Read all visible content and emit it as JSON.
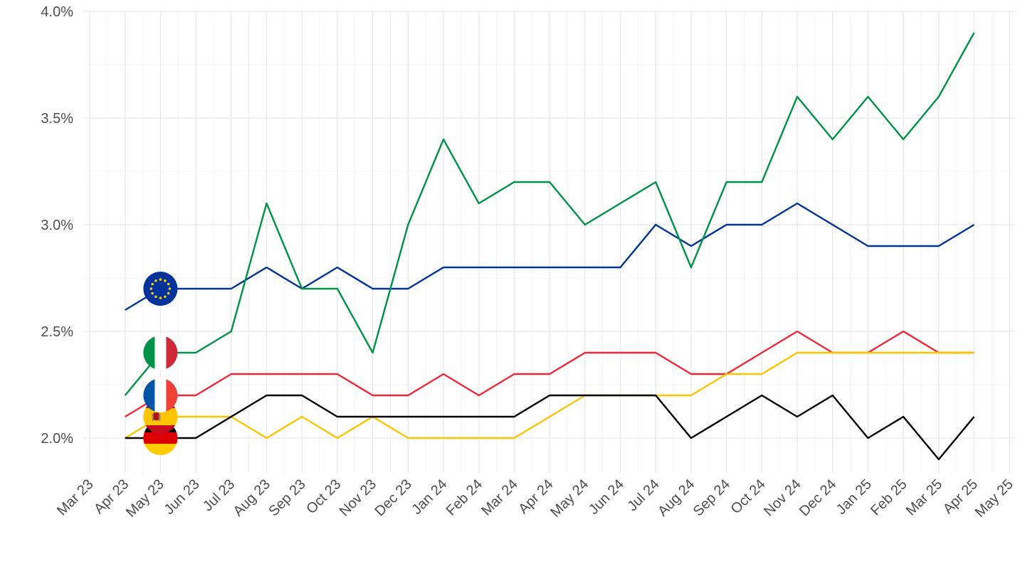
{
  "chart_data": {
    "type": "line",
    "title": "",
    "xlabel": "",
    "ylabel": "",
    "ylim": [
      1.8,
      4.0
    ],
    "y_ticks": [
      "2.0%",
      "2.5%",
      "3.0%",
      "3.5%",
      "4.0%"
    ],
    "y_tick_values": [
      2.0,
      2.5,
      3.0,
      3.5,
      4.0
    ],
    "x_ticks": [
      "Mar 23",
      "Apr 23",
      "May 23",
      "Jun 23",
      "Jul 23",
      "Aug 23",
      "Sep 23",
      "Oct 23",
      "Nov 23",
      "Dec 23",
      "Jan 24",
      "Feb 24",
      "Mar 24",
      "Apr 24",
      "May 24",
      "Jun 24",
      "Jul 24",
      "Aug 24",
      "Sep 24",
      "Oct 24",
      "Nov 24",
      "Dec 24",
      "Jan 25",
      "Feb 25",
      "Mar 25",
      "Apr 25",
      "May 25"
    ],
    "x": [
      "Apr 23",
      "May 23",
      "Jun 23",
      "Jul 23",
      "Aug 23",
      "Sep 23",
      "Oct 23",
      "Nov 23",
      "Dec 23",
      "Jan 24",
      "Feb 24",
      "Mar 24",
      "Apr 24",
      "May 24",
      "Jun 24",
      "Jul 24",
      "Aug 24",
      "Sep 24",
      "Oct 24",
      "Nov 24",
      "Dec 24",
      "Jan 25",
      "Feb 25",
      "Mar 25",
      "Apr 25"
    ],
    "grid": true,
    "legend": "flag markers at left of lines",
    "series": [
      {
        "flag": "eu-flag",
        "color": "#003399",
        "values": [
          2.6,
          2.7,
          2.7,
          2.7,
          2.8,
          2.7,
          2.8,
          2.7,
          2.7,
          2.8,
          2.8,
          2.8,
          2.8,
          2.8,
          2.8,
          3.0,
          2.9,
          3.0,
          3.0,
          3.1,
          3.0,
          2.9,
          2.9,
          2.9,
          3.0
        ]
      },
      {
        "flag": "italy-flag",
        "color": "#009246",
        "values": [
          2.2,
          2.4,
          2.4,
          2.5,
          3.1,
          2.7,
          2.7,
          2.4,
          3.0,
          3.4,
          3.1,
          3.2,
          3.2,
          3.0,
          3.1,
          3.2,
          2.8,
          3.2,
          3.2,
          3.6,
          3.4,
          3.6,
          3.4,
          3.6,
          3.9
        ]
      },
      {
        "flag": "france-flag",
        "color": "#ED2939",
        "values": [
          2.1,
          2.2,
          2.2,
          2.3,
          2.3,
          2.3,
          2.3,
          2.2,
          2.2,
          2.3,
          2.2,
          2.3,
          2.3,
          2.4,
          2.4,
          2.4,
          2.3,
          2.3,
          2.4,
          2.5,
          2.4,
          2.4,
          2.5,
          2.4,
          2.4
        ]
      },
      {
        "flag": "spain-flag",
        "color": "#FFC400",
        "values": [
          2.0,
          2.1,
          2.1,
          2.1,
          2.0,
          2.1,
          2.0,
          2.1,
          2.0,
          2.0,
          2.0,
          2.0,
          2.1,
          2.2,
          2.2,
          2.2,
          2.2,
          2.3,
          2.3,
          2.4,
          2.4,
          2.4,
          2.4,
          2.4,
          2.4
        ]
      },
      {
        "flag": "germany-flag",
        "color": "#000000",
        "values": [
          2.0,
          2.0,
          2.0,
          2.1,
          2.2,
          2.2,
          2.1,
          2.1,
          2.1,
          2.1,
          2.1,
          2.1,
          2.2,
          2.2,
          2.2,
          2.2,
          2.0,
          2.1,
          2.2,
          2.1,
          2.2,
          2.0,
          2.1,
          1.9,
          2.1
        ]
      }
    ],
    "flag_markers": [
      {
        "flag": "germany-flag",
        "x": "May 23",
        "y": 2.0
      },
      {
        "flag": "spain-flag",
        "x": "May 23",
        "y": 2.1
      },
      {
        "flag": "france-flag",
        "x": "May 23",
        "y": 2.2
      },
      {
        "flag": "italy-flag",
        "x": "May 23",
        "y": 2.4
      },
      {
        "flag": "eu-flag",
        "x": "May 23",
        "y": 2.7
      }
    ]
  }
}
